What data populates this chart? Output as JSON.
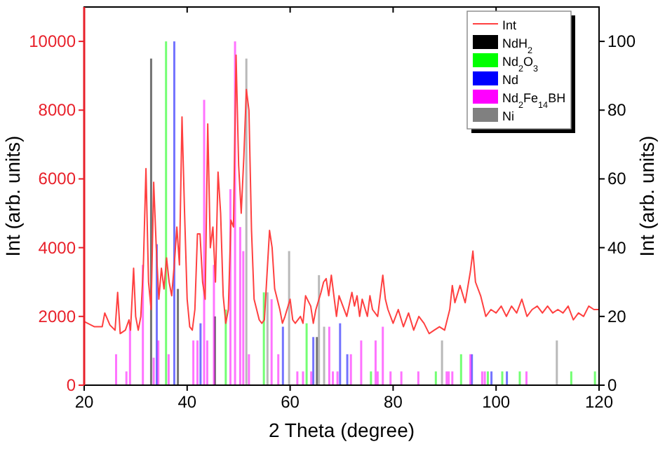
{
  "chart_data": {
    "type": "line",
    "xlabel": "2 Theta (degree)",
    "ylabel": "Int (arb. units)",
    "y2label": "Int (arb. units)",
    "xlim": [
      20,
      120
    ],
    "xticks": [
      20,
      40,
      60,
      80,
      100,
      120
    ],
    "ylim": [
      0,
      11000
    ],
    "yticks": [
      0,
      2000,
      4000,
      6000,
      8000,
      10000
    ],
    "y2lim": [
      0,
      110
    ],
    "y2ticks": [
      0,
      20,
      40,
      60,
      80,
      100
    ],
    "legend": "top right",
    "grid": false,
    "series": [
      {
        "name": "Int",
        "color": "#ff4040",
        "x": [
          20,
          22,
          23.5,
          24,
          25,
          26,
          26.5,
          27,
          28,
          28.7,
          29,
          29.6,
          30,
          30.5,
          31,
          31.5,
          32,
          32.5,
          33,
          33.5,
          34,
          34.5,
          35,
          35.5,
          36,
          36.5,
          37,
          37.5,
          38,
          38.5,
          39,
          39.5,
          40,
          40.5,
          41,
          41.5,
          42,
          42.5,
          43,
          43.5,
          44,
          44.5,
          45,
          45.5,
          46,
          46.5,
          47,
          47.5,
          48,
          48.5,
          49,
          49.5,
          50,
          50.5,
          51,
          51.5,
          52,
          52.5,
          53,
          54,
          54.5,
          55,
          56,
          56.5,
          57,
          58,
          58.5,
          59,
          60,
          60.5,
          61,
          62,
          62.5,
          63,
          64,
          64.5,
          65,
          66,
          66.5,
          67,
          67.5,
          68,
          68.5,
          69,
          69.5,
          71,
          72,
          72.5,
          73,
          73.5,
          74,
          75,
          75.5,
          76,
          77,
          78,
          78.5,
          79,
          80,
          81,
          82,
          83,
          84,
          85,
          86,
          87,
          88,
          89,
          90,
          91,
          91.5,
          92,
          93,
          94,
          95,
          95.5,
          96,
          97,
          98,
          99,
          100,
          101,
          102,
          103,
          104,
          105,
          106,
          107,
          108,
          109,
          110,
          111,
          112,
          113,
          114,
          115,
          116,
          117,
          118,
          119,
          120
        ],
        "values": [
          1850,
          1700,
          1700,
          2100,
          1750,
          1600,
          2700,
          1500,
          1600,
          1900,
          1600,
          3400,
          2000,
          1600,
          2000,
          3500,
          6300,
          3000,
          2200,
          5900,
          4000,
          2500,
          3400,
          2800,
          3700,
          3000,
          2600,
          3500,
          4600,
          3500,
          7800,
          5000,
          2500,
          1700,
          1600,
          2200,
          4400,
          4400,
          3000,
          2500,
          7600,
          4000,
          4600,
          3000,
          6200,
          5000,
          2600,
          1800,
          2200,
          4800,
          4600,
          9600,
          6400,
          5000,
          6600,
          8600,
          8000,
          4500,
          2500,
          1900,
          1800,
          1900,
          4500,
          4000,
          2800,
          2200,
          1800,
          2000,
          2500,
          1900,
          1800,
          2000,
          1800,
          2600,
          2300,
          1800,
          2200,
          2700,
          3000,
          3100,
          2600,
          3200,
          2600,
          2000,
          2600,
          2000,
          2700,
          2300,
          2600,
          2000,
          2500,
          2000,
          2600,
          2200,
          2000,
          3200,
          2500,
          2200,
          1800,
          2200,
          1700,
          2100,
          1600,
          2000,
          1800,
          1500,
          1600,
          1700,
          1600,
          2200,
          2900,
          2400,
          2900,
          2400,
          3300,
          3900,
          3000,
          2600,
          2000,
          2200,
          2100,
          2300,
          2000,
          2300,
          2100,
          2500,
          2000,
          2200,
          2300,
          2100,
          2300,
          2100,
          2200,
          2100,
          2300,
          1900,
          2100,
          2000,
          2300,
          2200,
          2200
        ]
      },
      {
        "name": "NdH$_{2}$",
        "type": "bar",
        "axis": "y2",
        "color": "#000000",
        "x": [
          33.0,
          38.2,
          45.4,
          65.2
        ],
        "values": [
          95,
          28,
          20,
          14
        ]
      },
      {
        "name": "Nd$_{2}$O$_{3}$",
        "type": "bar",
        "axis": "y2",
        "color": "#00ff00",
        "x": [
          35.9,
          47.5,
          54.9,
          63.2,
          75.7,
          88.3,
          93.2,
          98.4,
          101.2,
          104.6,
          114.6,
          119.2
        ],
        "values": [
          100,
          22,
          27,
          18,
          4,
          4,
          9,
          4,
          4,
          4,
          4,
          4
        ]
      },
      {
        "name": "Nd",
        "type": "bar",
        "axis": "y2",
        "color": "#0000ff",
        "x": [
          34.1,
          37.5,
          42.6,
          58.6,
          64.5,
          69.7,
          71.1,
          95.3,
          99.1,
          102.1
        ],
        "values": [
          41,
          100,
          18,
          17,
          14,
          18,
          9,
          9,
          4,
          4
        ]
      },
      {
        "name": "Nd$_{2}$Fe$_{14}$BH",
        "type": "bar",
        "axis": "y2",
        "color": "#ff00ff",
        "x": [
          26.2,
          28.2,
          28.9,
          31.4,
          33.5,
          34.4,
          36.4,
          41.2,
          42.0,
          43.3,
          43.9,
          45.2,
          48.4,
          49.3,
          50.3,
          50.9,
          52.0,
          56.4,
          57.7,
          61.4,
          62.5,
          64.1,
          67.6,
          68.3,
          69.2,
          71.8,
          73.8,
          76.6,
          77.0,
          78.0,
          79.5,
          81.6,
          84.9,
          90.4,
          90.8,
          91.5,
          95.0,
          97.3,
          97.8,
          105.9
        ],
        "values": [
          9,
          4,
          18,
          35,
          8,
          13,
          9,
          13,
          13,
          83,
          13,
          35,
          57,
          100,
          46,
          39,
          9,
          25,
          9,
          4,
          4,
          4,
          17,
          4,
          4,
          9,
          13,
          13,
          4,
          17,
          4,
          4,
          4,
          4,
          4,
          4,
          9,
          4,
          4,
          4
        ]
      },
      {
        "name": "Ni",
        "type": "bar",
        "axis": "y2",
        "color": "#808080",
        "x": [
          51.5,
          55.6,
          59.8,
          65.6,
          66.6,
          89.5,
          111.8
        ],
        "values": [
          95,
          27,
          39,
          32,
          17,
          13,
          13
        ]
      }
    ]
  }
}
